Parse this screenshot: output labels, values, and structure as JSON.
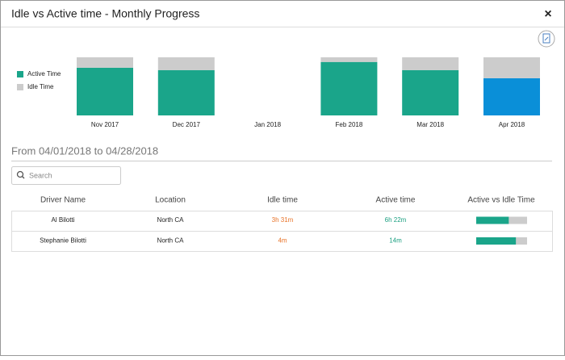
{
  "dialog": {
    "title": "Idle vs Active time - Monthly Progress",
    "close": "×"
  },
  "chart_data": {
    "type": "bar",
    "stacked": true,
    "categories": [
      "Nov 2017",
      "Dec 2017",
      "Jan 2018",
      "Feb 2018",
      "Mar 2018",
      "Apr 2018"
    ],
    "series": [
      {
        "name": "Active Time",
        "color": "#1aa58a",
        "colors": [
          "#1aa58a",
          "#1aa58a",
          "#1aa58a",
          "#1aa58a",
          "#1aa58a",
          "#0a8fd8"
        ],
        "values": [
          82,
          78,
          null,
          92,
          78,
          64
        ]
      },
      {
        "name": "Idle Time",
        "color": "#cccccc",
        "values": [
          18,
          22,
          null,
          8,
          22,
          36
        ]
      }
    ],
    "ylim": [
      0,
      100
    ],
    "legend": "left"
  },
  "date_range": "From 04/01/2018 to 04/28/2018",
  "search_placeholder": "Search",
  "table": {
    "headers": [
      "Driver Name",
      "Location",
      "Idle time",
      "Active time",
      "Active vs Idle Time"
    ],
    "rows": [
      [
        "Al Bilotti",
        "North CA",
        "3h 31m",
        "6h 22m",
        64
      ],
      [
        "Stephanie Bilotti",
        "North CA",
        "4m",
        "14m",
        78
      ]
    ]
  }
}
